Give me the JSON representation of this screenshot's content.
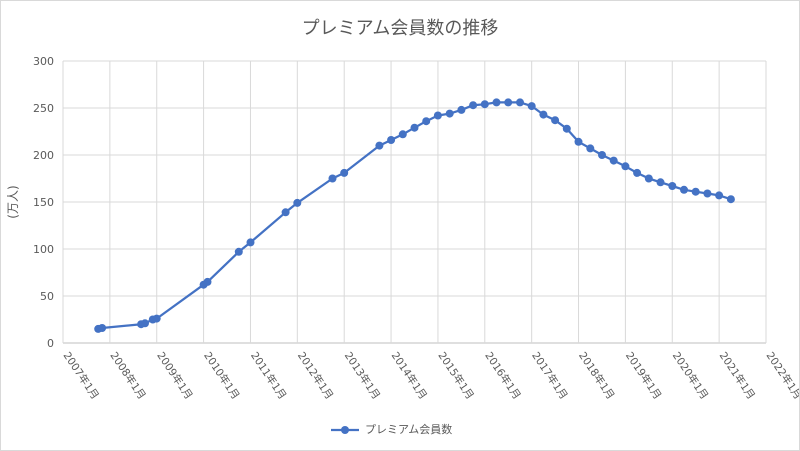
{
  "chart_data": {
    "type": "line",
    "title": "プレミアム会員数の推移",
    "xlabel": "",
    "ylabel": "(万人)",
    "x_tick_labels": [
      "2007年1月",
      "2008年1月",
      "2009年1月",
      "2010年1月",
      "2011年1月",
      "2012年1月",
      "2013年1月",
      "2014年1月",
      "2015年1月",
      "2016年1月",
      "2017年1月",
      "2018年1月",
      "2019年1月",
      "2020年1月",
      "2021年1月",
      "2022年1月"
    ],
    "xlim": [
      "2007-01",
      "2022-01"
    ],
    "ylim": [
      0,
      300
    ],
    "y_ticks": [
      0,
      50,
      100,
      150,
      200,
      250,
      300
    ],
    "grid": true,
    "legend_position": "bottom",
    "series": [
      {
        "name": "プレミアム会員数",
        "color": "#4472c4",
        "x": [
          "2007-10",
          "2007-11",
          "2008-09",
          "2008-10",
          "2008-12",
          "2009-01",
          "2010-01",
          "2010-02",
          "2010-10",
          "2011-01",
          "2011-10",
          "2012-01",
          "2012-10",
          "2013-01",
          "2013-10",
          "2014-01",
          "2014-04",
          "2014-07",
          "2014-10",
          "2015-01",
          "2015-04",
          "2015-07",
          "2015-10",
          "2016-01",
          "2016-04",
          "2016-07",
          "2016-10",
          "2017-01",
          "2017-04",
          "2017-07",
          "2017-10",
          "2018-01",
          "2018-04",
          "2018-07",
          "2018-10",
          "2019-01",
          "2019-04",
          "2019-07",
          "2019-10",
          "2020-01",
          "2020-04",
          "2020-07",
          "2020-10",
          "2021-01",
          "2021-04"
        ],
        "values": [
          15,
          16,
          20,
          21,
          25,
          26,
          62,
          65,
          97,
          107,
          139,
          149,
          175,
          181,
          210,
          216,
          222,
          229,
          236,
          242,
          244,
          248,
          253,
          254,
          256,
          256,
          256,
          252,
          243,
          237,
          228,
          214,
          207,
          200,
          194,
          188,
          181,
          175,
          171,
          167,
          163,
          161,
          159,
          157,
          153
        ]
      }
    ]
  }
}
